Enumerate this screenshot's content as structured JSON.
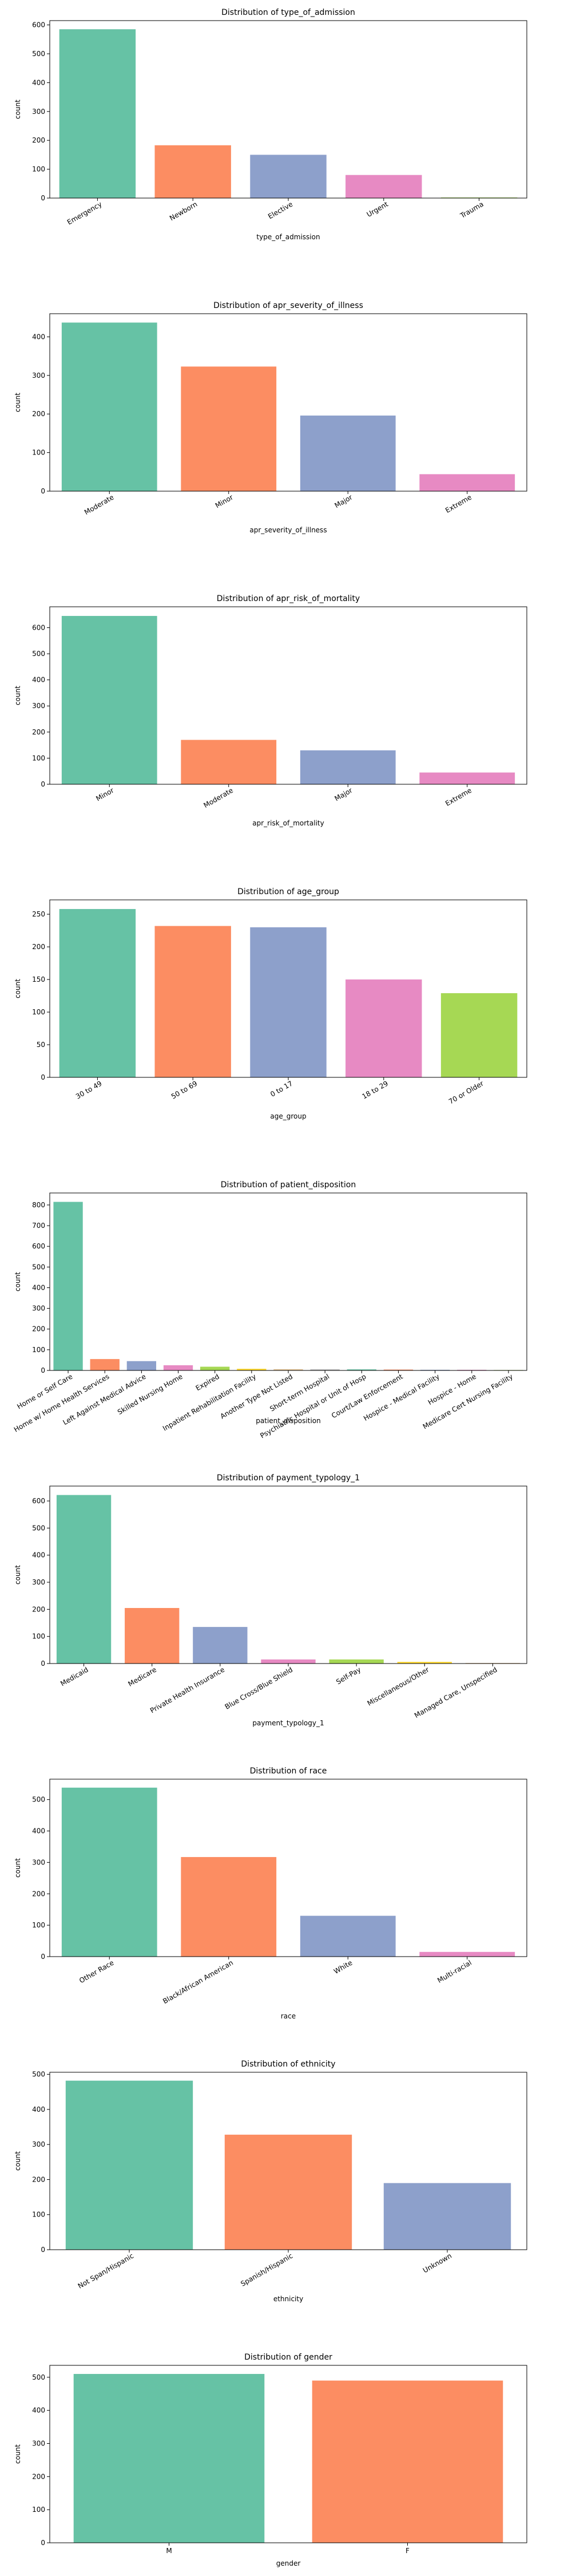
{
  "chart_data": [
    {
      "type": "bar",
      "title": "Distribution of type_of_admission",
      "xlabel": "type_of_admission",
      "ylabel": "count",
      "categories": [
        "Emergency",
        "Newborn",
        "Elective",
        "Urgent",
        "Trauma"
      ],
      "values": [
        585,
        183,
        150,
        80,
        2
      ],
      "ylim": [
        0,
        615
      ],
      "yticks": [
        0,
        100,
        200,
        300,
        400,
        500,
        600
      ],
      "grid": false,
      "colors": [
        "#66c2a5",
        "#fc8d62",
        "#8da0cb",
        "#e78ac3",
        "#a6d854"
      ]
    },
    {
      "type": "bar",
      "title": "Distribution of apr_severity_of_illness",
      "xlabel": "apr_severity_of_illness",
      "ylabel": "count",
      "categories": [
        "Moderate",
        "Minor",
        "Major",
        "Extreme"
      ],
      "values": [
        437,
        323,
        196,
        44
      ],
      "ylim": [
        0,
        460
      ],
      "yticks": [
        0,
        100,
        200,
        300,
        400
      ],
      "grid": false,
      "colors": [
        "#66c2a5",
        "#fc8d62",
        "#8da0cb",
        "#e78ac3"
      ]
    },
    {
      "type": "bar",
      "title": "Distribution of apr_risk_of_mortality",
      "xlabel": "apr_risk_of_mortality",
      "ylabel": "count",
      "categories": [
        "Minor",
        "Moderate",
        "Major",
        "Extreme"
      ],
      "values": [
        645,
        170,
        130,
        45
      ],
      "ylim": [
        0,
        680
      ],
      "yticks": [
        0,
        100,
        200,
        300,
        400,
        500,
        600
      ],
      "grid": false,
      "colors": [
        "#66c2a5",
        "#fc8d62",
        "#8da0cb",
        "#e78ac3"
      ]
    },
    {
      "type": "bar",
      "title": "Distribution of age_group",
      "xlabel": "age_group",
      "ylabel": "count",
      "categories": [
        "30 to 49",
        "50 to 69",
        "0 to 17",
        "18 to 29",
        "70 or Older"
      ],
      "values": [
        258,
        232,
        230,
        150,
        129
      ],
      "ylim": [
        0,
        272
      ],
      "yticks": [
        0,
        50,
        100,
        150,
        200,
        250
      ],
      "grid": false,
      "colors": [
        "#66c2a5",
        "#fc8d62",
        "#8da0cb",
        "#e78ac3",
        "#a6d854"
      ]
    },
    {
      "type": "bar",
      "title": "Distribution of patient_disposition",
      "xlabel": "patient_disposition",
      "ylabel": "count",
      "categories": [
        "Home or Self Care",
        "Home w/ Home Health Services",
        "Left Against Medical Advice",
        "Skilled Nursing Home",
        "Expired",
        "Inpatient Rehabilitation Facility",
        "Another Type Not Listed",
        "Short-term Hospital",
        "Psychiatric Hospital or Unit of Hosp",
        "Court/Law Enforcement",
        "Hospice - Medical Facility",
        "Hospice - Home",
        "Medicare Cert Nursing Facility"
      ],
      "values": [
        815,
        55,
        45,
        25,
        18,
        8,
        6,
        5,
        5,
        4,
        3,
        3,
        2
      ],
      "ylim": [
        0,
        858
      ],
      "yticks": [
        0,
        100,
        200,
        300,
        400,
        500,
        600,
        700,
        800
      ],
      "grid": false,
      "colors": [
        "#66c2a5",
        "#fc8d62",
        "#8da0cb",
        "#e78ac3",
        "#a6d854",
        "#ffd92f",
        "#e5c494",
        "#b3b3b3",
        "#66c2a5",
        "#fc8d62",
        "#8da0cb",
        "#e78ac3",
        "#a6d854"
      ]
    },
    {
      "type": "bar",
      "title": "Distribution of payment_typology_1",
      "xlabel": "payment_typology_1",
      "ylabel": "count",
      "categories": [
        "Medicaid",
        "Medicare",
        "Private Health Insurance",
        "Blue Cross/Blue Shield",
        "Self-Pay",
        "Miscellaneous/Other",
        "Managed Care, Unspecified"
      ],
      "values": [
        622,
        205,
        135,
        15,
        15,
        6,
        2
      ],
      "ylim": [
        0,
        655
      ],
      "yticks": [
        0,
        100,
        200,
        300,
        400,
        500,
        600
      ],
      "grid": false,
      "colors": [
        "#66c2a5",
        "#fc8d62",
        "#8da0cb",
        "#e78ac3",
        "#a6d854",
        "#ffd92f",
        "#e5c494"
      ]
    },
    {
      "type": "bar",
      "title": "Distribution of race",
      "xlabel": "race",
      "ylabel": "count",
      "categories": [
        "Other Race",
        "Black/African American",
        "White",
        "Multi-racial"
      ],
      "values": [
        538,
        317,
        130,
        15
      ],
      "ylim": [
        0,
        565
      ],
      "yticks": [
        0,
        100,
        200,
        300,
        400,
        500
      ],
      "grid": false,
      "colors": [
        "#66c2a5",
        "#fc8d62",
        "#8da0cb",
        "#e78ac3"
      ]
    },
    {
      "type": "bar",
      "title": "Distribution of ethnicity",
      "xlabel": "ethnicity",
      "ylabel": "count",
      "categories": [
        "Not Span/Hispanic",
        "Spanish/Hispanic",
        "Unknown"
      ],
      "values": [
        482,
        328,
        190
      ],
      "ylim": [
        0,
        506
      ],
      "yticks": [
        0,
        100,
        200,
        300,
        400,
        500
      ],
      "grid": false,
      "colors": [
        "#66c2a5",
        "#fc8d62",
        "#8da0cb"
      ]
    },
    {
      "type": "bar",
      "title": "Distribution of gender",
      "xlabel": "gender",
      "ylabel": "count",
      "categories": [
        "M",
        "F"
      ],
      "values": [
        510,
        490
      ],
      "ylim": [
        0,
        536
      ],
      "yticks": [
        0,
        100,
        200,
        300,
        400,
        500
      ],
      "grid": false,
      "colors": [
        "#66c2a5",
        "#fc8d62"
      ]
    }
  ]
}
